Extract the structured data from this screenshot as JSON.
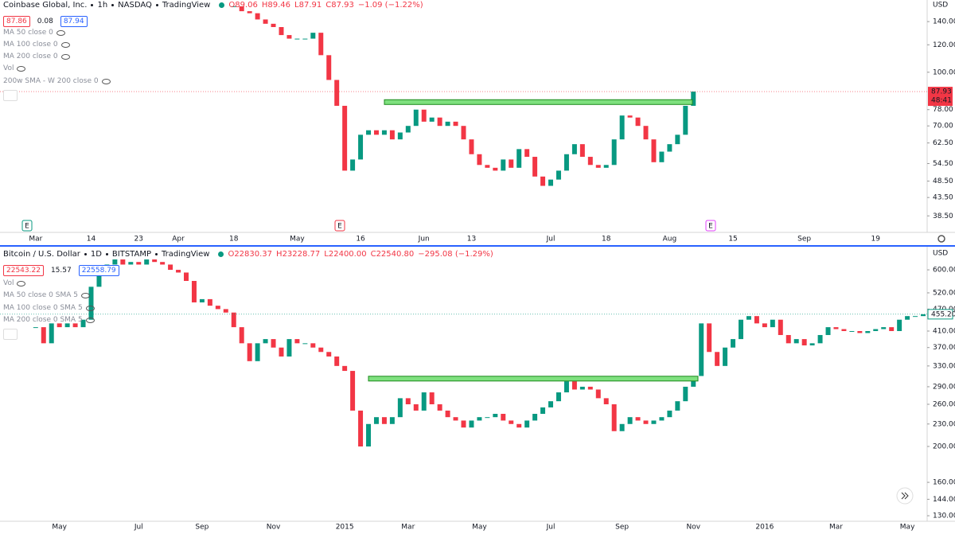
{
  "chart_data": [
    {
      "type": "candlestick",
      "title": "Coinbase Global, Inc.",
      "interval": "1h",
      "exchange": "NASDAQ",
      "source": "TradingView",
      "quote": [
        {
          "label": "O",
          "value": "89.06"
        },
        {
          "label": "H",
          "value": "89.46"
        },
        {
          "label": "L",
          "value": "87.91"
        },
        {
          "label": "C",
          "value": "87.93"
        },
        {
          "label": "",
          "value": "−1.09 (−1.22%)"
        }
      ],
      "bid": "87.86",
      "spread": "0.08",
      "ask": "87.94",
      "indicators": [
        "MA 50 close 0",
        "MA 100 close 0",
        "MA 200 close 0",
        "Vol",
        "200w SMA - W 200 close 0"
      ],
      "axis_unit": "USD",
      "price_label": "87.93",
      "countdown": "48:41",
      "events": [
        "E",
        "E",
        "E"
      ],
      "log_scale": true,
      "grid": false,
      "up_color": "#089981",
      "down_color": "#f23645",
      "hline": 82,
      "hline_color": "#7ee07e",
      "ylim": [
        34.5,
        161.6
      ],
      "yticks": [
        {
          "value": 38.5,
          "label": "38.50"
        },
        {
          "value": 43.5,
          "label": "43.50"
        },
        {
          "value": 48.5,
          "label": "48.50"
        },
        {
          "value": 54.5,
          "label": "54.50"
        },
        {
          "value": 62.5,
          "label": "62.50"
        },
        {
          "value": 70,
          "label": "70.00"
        },
        {
          "value": 78,
          "label": "78.00"
        },
        {
          "value": 100,
          "label": "100.00"
        },
        {
          "value": 120,
          "label": "120.00"
        },
        {
          "value": 140,
          "label": "140.00"
        }
      ],
      "categories": [
        null,
        null,
        null,
        null,
        "Mar",
        null,
        null,
        null,
        null,
        null,
        null,
        "14",
        null,
        null,
        null,
        null,
        null,
        "23",
        null,
        null,
        null,
        null,
        "Apr",
        null,
        null,
        null,
        null,
        null,
        null,
        "18",
        null,
        null,
        null,
        null,
        null,
        null,
        null,
        "May",
        null,
        null,
        null,
        null,
        null,
        null,
        null,
        "16",
        null,
        null,
        null,
        null,
        null,
        null,
        null,
        "Jun",
        null,
        null,
        null,
        null,
        null,
        "13",
        null,
        null,
        null,
        null,
        null,
        null,
        null,
        null,
        null,
        "Jul",
        null,
        null,
        null,
        null,
        null,
        null,
        "18",
        null,
        null,
        null,
        null,
        null,
        null,
        null,
        "Aug",
        null,
        null,
        null,
        null,
        null,
        null,
        null,
        "15",
        null,
        null,
        null,
        null,
        null,
        null,
        null,
        null,
        "Sep",
        null,
        null,
        null,
        null,
        null,
        null,
        null,
        null,
        "19",
        null,
        null,
        null,
        null,
        null,
        null
      ],
      "values": [
        null,
        null,
        null,
        null,
        null,
        null,
        null,
        null,
        null,
        null,
        null,
        null,
        null,
        null,
        null,
        null,
        null,
        null,
        null,
        null,
        null,
        null,
        null,
        null,
        null,
        null,
        null,
        null,
        null,
        155,
        150,
        148,
        142,
        138,
        135,
        128,
        125,
        125,
        125,
        130,
        112,
        95,
        80,
        52,
        56,
        66,
        68,
        66,
        68,
        64,
        67,
        70,
        78,
        72,
        74,
        70,
        72,
        70,
        64,
        58,
        54,
        53,
        52,
        56,
        53,
        60,
        57,
        50,
        47,
        49,
        52,
        58,
        62,
        57,
        54,
        53,
        54,
        64,
        75,
        74,
        70,
        64,
        55,
        59,
        62,
        66,
        80,
        87.93,
        null,
        null,
        null,
        null,
        null,
        null,
        null,
        null,
        null,
        null,
        null,
        null,
        null,
        null,
        null,
        null,
        null,
        null,
        null,
        null,
        null,
        null,
        null,
        null,
        null,
        null,
        null,
        null,
        null
      ]
    },
    {
      "type": "candlestick",
      "title": "Bitcoin / U.S. Dollar",
      "interval": "1D",
      "exchange": "BITSTAMP",
      "source": "TradingView",
      "quote": [
        {
          "label": "O",
          "value": "22830.37"
        },
        {
          "label": "H",
          "value": "23228.77"
        },
        {
          "label": "L",
          "value": "22400.00"
        },
        {
          "label": "C",
          "value": "22540.80"
        },
        {
          "label": "",
          "value": "−295.08 (−1.29%)"
        }
      ],
      "bid": "22543.22",
      "spread": "15.57",
      "ask": "22558.79",
      "indicators": [
        "Vol",
        "MA 50 close 0 SMA 5",
        "MA 100 close 0 SMA 5",
        "MA 200 close 0 SMA 5"
      ],
      "axis_unit": "USD",
      "price_label": "455.20",
      "log_scale": true,
      "grid": false,
      "up_color": "#089981",
      "down_color": "#f23645",
      "hline": 305,
      "hline_color": "#7ee07e",
      "ylim": [
        125.6,
        686
      ],
      "yticks": [
        {
          "value": 130,
          "label": "130.00"
        },
        {
          "value": 144,
          "label": "144.00"
        },
        {
          "value": 160,
          "label": "160.00"
        },
        {
          "value": 200,
          "label": "200.00"
        },
        {
          "value": 230,
          "label": "230.00"
        },
        {
          "value": 260,
          "label": "260.00"
        },
        {
          "value": 290,
          "label": "290.00"
        },
        {
          "value": 330,
          "label": "330.00"
        },
        {
          "value": 370,
          "label": "370.00"
        },
        {
          "value": 410,
          "label": "410.00"
        },
        {
          "value": 470,
          "label": "470.00"
        },
        {
          "value": 520,
          "label": "520.00"
        },
        {
          "value": 600,
          "label": "600.00"
        }
      ],
      "categories": [
        null,
        null,
        null,
        null,
        null,
        null,
        null,
        "May",
        null,
        null,
        null,
        null,
        null,
        null,
        null,
        null,
        null,
        "Jul",
        null,
        null,
        null,
        null,
        null,
        null,
        null,
        "Sep",
        null,
        null,
        null,
        null,
        null,
        null,
        null,
        null,
        "Nov",
        null,
        null,
        null,
        null,
        null,
        null,
        null,
        null,
        "2015",
        null,
        null,
        null,
        null,
        null,
        null,
        null,
        "Mar",
        null,
        null,
        null,
        null,
        null,
        null,
        null,
        null,
        "May",
        null,
        null,
        null,
        null,
        null,
        null,
        null,
        null,
        "Jul",
        null,
        null,
        null,
        null,
        null,
        null,
        null,
        null,
        "Sep",
        null,
        null,
        null,
        null,
        null,
        null,
        null,
        null,
        "Nov",
        null,
        null,
        null,
        null,
        null,
        null,
        null,
        null,
        "2016",
        null,
        null,
        null,
        null,
        null,
        null,
        null,
        null,
        "Mar",
        null,
        null,
        null,
        null,
        null,
        null,
        null,
        null,
        "May",
        null,
        null
      ],
      "values": [
        null,
        null,
        null,
        null,
        420,
        380,
        430,
        420,
        430,
        420,
        440,
        540,
        600,
        620,
        640,
        620,
        630,
        620,
        640,
        630,
        620,
        600,
        590,
        560,
        490,
        500,
        480,
        470,
        460,
        420,
        380,
        340,
        380,
        390,
        370,
        350,
        390,
        380,
        380,
        370,
        360,
        350,
        330,
        320,
        250,
        200,
        230,
        240,
        230,
        240,
        270,
        260,
        250,
        280,
        260,
        250,
        240,
        235,
        225,
        235,
        240,
        240,
        245,
        235,
        230,
        225,
        235,
        245,
        255,
        265,
        280,
        300,
        285,
        290,
        285,
        270,
        260,
        220,
        230,
        240,
        235,
        230,
        235,
        240,
        250,
        265,
        290,
        310,
        430,
        360,
        330,
        370,
        390,
        440,
        450,
        430,
        420,
        440,
        400,
        380,
        390,
        375,
        380,
        400,
        420,
        415,
        410,
        410,
        405,
        410,
        415,
        420,
        410,
        440,
        450,
        450,
        455.2
      ]
    }
  ]
}
